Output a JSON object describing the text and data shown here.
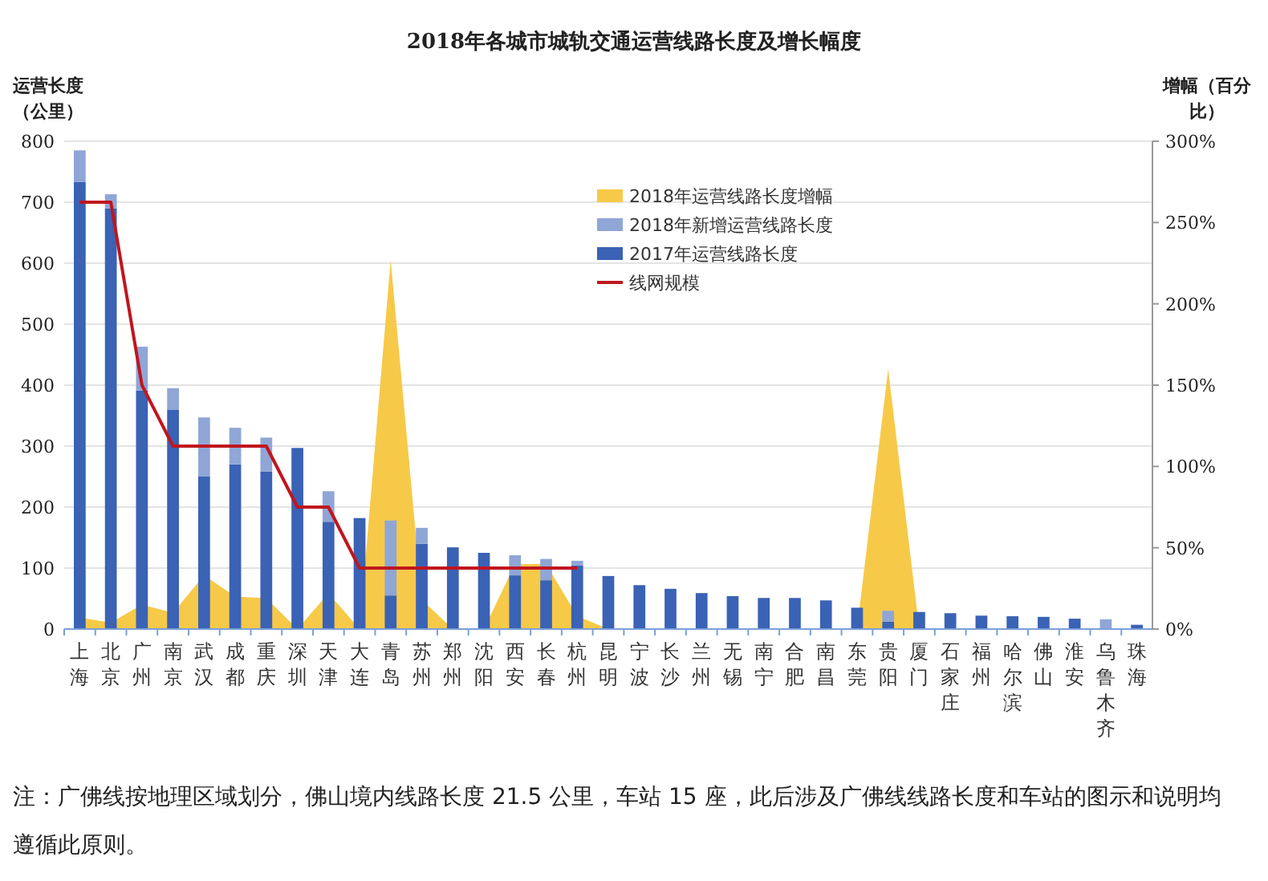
{
  "chart_data": {
    "type": "bar",
    "title": "2018年各城市城轨交通运营线路长度及增长幅度",
    "ylabel": "运营长度（公里）",
    "y2label": "增幅（百分比）",
    "categories": [
      "上海",
      "北京",
      "广州",
      "南京",
      "武汉",
      "成都",
      "重庆",
      "深圳",
      "天津",
      "大连",
      "青岛",
      "苏州",
      "郑州",
      "沈阳",
      "西安",
      "长春",
      "杭州",
      "昆明",
      "宁波",
      "长沙",
      "兰州",
      "无锡",
      "南宁",
      "合肥",
      "南昌",
      "东莞",
      "贵阳",
      "厦门",
      "石家庄",
      "福州",
      "哈尔滨",
      "佛山",
      "淮安",
      "乌鲁木齐",
      "珠海"
    ],
    "stacked": true,
    "series": [
      {
        "name": "2018年运营线路长度增幅",
        "type": "area",
        "axis": "y2",
        "color": "#f7c948",
        "values": [
          7,
          4,
          15,
          10,
          33,
          20,
          19,
          0,
          22,
          0,
          227,
          18,
          0,
          0,
          40,
          40,
          8,
          0,
          0,
          0,
          0,
          0,
          0,
          0,
          0,
          0,
          160,
          0,
          0,
          0,
          0,
          0,
          0,
          0,
          0
        ]
      },
      {
        "name": "2017年运营线路长度",
        "color": "#3a62b5",
        "values": [
          733,
          690,
          391,
          360,
          250,
          270,
          258,
          297,
          176,
          182,
          55,
          140,
          134,
          125,
          88,
          80,
          104,
          87,
          72,
          66,
          59,
          54,
          51,
          51,
          47,
          35,
          12,
          28,
          26,
          22,
          21,
          20,
          17,
          0,
          7
        ]
      },
      {
        "name": "2018年新增运营线路长度",
        "color": "#8fa6d6",
        "values": [
          52,
          23,
          72,
          35,
          97,
          60,
          56,
          0,
          50,
          0,
          123,
          26,
          0,
          0,
          33,
          35,
          8,
          0,
          0,
          0,
          0,
          0,
          0,
          0,
          0,
          0,
          18,
          0,
          0,
          0,
          0,
          0,
          0,
          16,
          0
        ]
      },
      {
        "name": "线网规模",
        "type": "line",
        "color": "#c0161e",
        "values": [
          700,
          700,
          400,
          300,
          300,
          300,
          300,
          200,
          200,
          100,
          100,
          100,
          100,
          100,
          100,
          100,
          100,
          null,
          null,
          null,
          null,
          null,
          null,
          null,
          null,
          null,
          null,
          null,
          null,
          null,
          null,
          null,
          null,
          null,
          null
        ]
      }
    ],
    "ylim": [
      0,
      800
    ],
    "yticks": [
      0,
      100,
      200,
      300,
      400,
      500,
      600,
      700,
      800
    ],
    "y2lim": [
      0,
      300
    ],
    "y2ticks": [
      {
        "value": 0,
        "label": "0%"
      },
      {
        "value": 50,
        "label": "50%"
      },
      {
        "value": 100,
        "label": "100%"
      },
      {
        "value": 150,
        "label": "150%"
      },
      {
        "value": 200,
        "label": "200%"
      },
      {
        "value": 250,
        "label": "250%"
      },
      {
        "value": 300,
        "label": "300%"
      }
    ],
    "grid": "y",
    "legend": "top",
    "line_style": "solid",
    "marker": "none",
    "annotations": [
      "注：广佛线按地理区域划分，佛山境内线路长度 21.5 公里，车站 15 座，此后涉及广佛线线路长度和车站的图示和说明均遵循此原则。"
    ]
  }
}
